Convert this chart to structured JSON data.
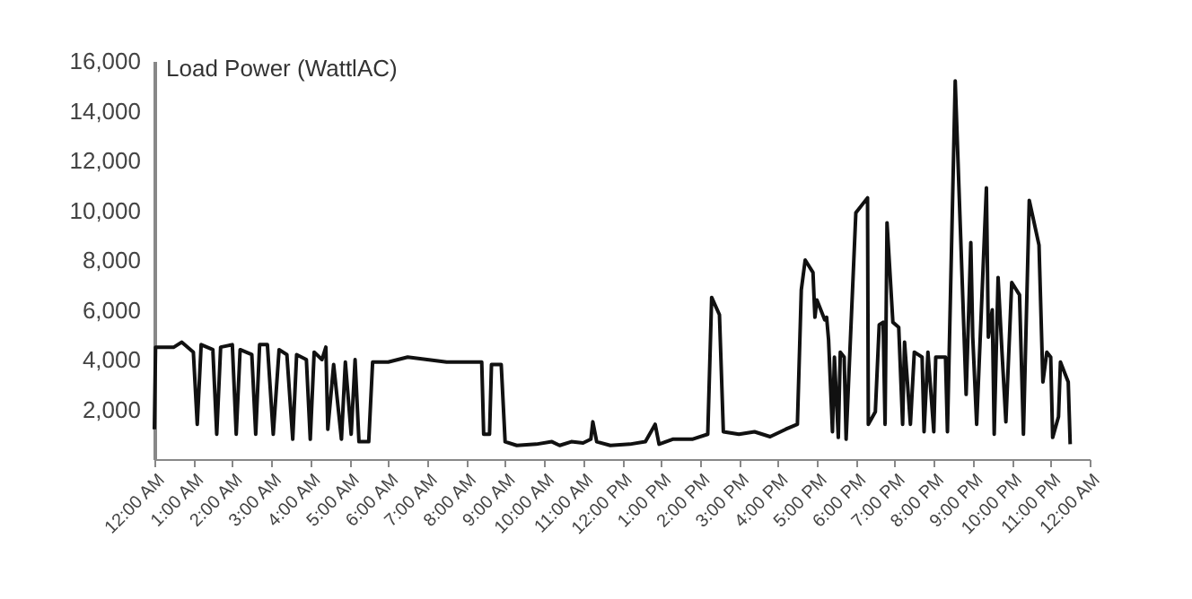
{
  "chart_data": {
    "type": "line",
    "ylabel": "Load Power (WattlAC)",
    "xlim": [
      0,
      24
    ],
    "ylim": [
      0,
      16000
    ],
    "xticks": [
      {
        "value": 0,
        "label": "12:00 AM"
      },
      {
        "value": 1,
        "label": "1:00 AM"
      },
      {
        "value": 2,
        "label": "2:00 AM"
      },
      {
        "value": 3,
        "label": "3:00 AM"
      },
      {
        "value": 4,
        "label": "4:00 AM"
      },
      {
        "value": 5,
        "label": "5:00 AM"
      },
      {
        "value": 6,
        "label": "6:00 AM"
      },
      {
        "value": 7,
        "label": "7:00 AM"
      },
      {
        "value": 8,
        "label": "8:00 AM"
      },
      {
        "value": 9,
        "label": "9:00 AM"
      },
      {
        "value": 10,
        "label": "10:00 AM"
      },
      {
        "value": 11,
        "label": "11:00 AM"
      },
      {
        "value": 12,
        "label": "12:00 PM"
      },
      {
        "value": 13,
        "label": "1:00 PM"
      },
      {
        "value": 14,
        "label": "2:00 PM"
      },
      {
        "value": 15,
        "label": "3:00 PM"
      },
      {
        "value": 16,
        "label": "4:00 PM"
      },
      {
        "value": 17,
        "label": "5:00 PM"
      },
      {
        "value": 18,
        "label": "6:00 PM"
      },
      {
        "value": 19,
        "label": "7:00 PM"
      },
      {
        "value": 20,
        "label": "8:00 PM"
      },
      {
        "value": 21,
        "label": "9:00 PM"
      },
      {
        "value": 22,
        "label": "10:00 PM"
      },
      {
        "value": 23,
        "label": "11:00 PM"
      },
      {
        "value": 24,
        "label": "12:00 AM"
      }
    ],
    "yticks": [
      {
        "value": 2000,
        "label": "2,000"
      },
      {
        "value": 4000,
        "label": "4,000"
      },
      {
        "value": 6000,
        "label": "6,000"
      },
      {
        "value": 8000,
        "label": "8,000"
      },
      {
        "value": 10000,
        "label": "10,000"
      },
      {
        "value": 12000,
        "label": "12,000"
      },
      {
        "value": 14000,
        "label": "14,000"
      },
      {
        "value": 16000,
        "label": "16,000"
      }
    ],
    "grid": false,
    "marker": "none",
    "line_style": "solid",
    "series": [
      {
        "color": "#111111",
        "x": [
          0,
          0.03,
          0.5,
          0.7,
          1.0,
          1.1,
          1.2,
          1.5,
          1.6,
          1.7,
          2.0,
          2.1,
          2.2,
          2.5,
          2.6,
          2.7,
          2.9,
          3.05,
          3.2,
          3.4,
          3.55,
          3.65,
          3.9,
          4.0,
          4.1,
          4.3,
          4.4,
          4.45,
          4.6,
          4.8,
          4.9,
          5.05,
          5.15,
          5.25,
          5.5,
          5.6,
          6.0,
          6.5,
          7.0,
          7.5,
          8.0,
          8.4,
          8.45,
          8.6,
          8.65,
          8.9,
          9.0,
          9.3,
          9.8,
          10.2,
          10.4,
          10.7,
          11.0,
          11.2,
          11.25,
          11.35,
          11.7,
          12.2,
          12.6,
          12.85,
          12.95,
          13.3,
          13.8,
          14.2,
          14.3,
          14.5,
          14.6,
          15.0,
          15.4,
          15.8,
          16.2,
          16.5,
          16.6,
          16.7,
          16.9,
          16.95,
          17.0,
          17.1,
          17.2,
          17.25,
          17.3,
          17.4,
          17.45,
          17.55,
          17.6,
          17.7,
          17.75,
          18.0,
          18.3,
          18.32,
          18.5,
          18.6,
          18.7,
          18.75,
          18.8,
          18.95,
          19.1,
          19.2,
          19.25,
          19.4,
          19.5,
          19.7,
          19.75,
          19.85,
          20.0,
          20.05,
          20.3,
          20.35,
          20.55,
          20.83,
          20.95,
          21.0,
          21.1,
          21.35,
          21.4,
          21.5,
          21.55,
          21.65,
          21.75,
          21.85,
          22.0,
          22.2,
          22.3,
          22.45,
          22.7,
          22.8,
          22.9,
          23.0,
          23.05,
          23.2,
          23.25,
          23.45,
          23.5
        ],
        "values": [
          1200,
          4500,
          4500,
          4700,
          4300,
          1400,
          4600,
          4400,
          1000,
          4500,
          4600,
          1000,
          4400,
          4200,
          1000,
          4600,
          4600,
          1000,
          4400,
          4200,
          800,
          4200,
          4000,
          800,
          4300,
          4000,
          4500,
          1200,
          3800,
          800,
          3900,
          1000,
          4000,
          700,
          700,
          3900,
          3900,
          4100,
          4000,
          3900,
          3900,
          3900,
          1000,
          1000,
          3800,
          3800,
          700,
          550,
          600,
          700,
          550,
          700,
          650,
          800,
          1500,
          700,
          550,
          600,
          700,
          1400,
          600,
          800,
          800,
          1000,
          6500,
          5800,
          1100,
          1000,
          1100,
          900,
          1200,
          1400,
          6800,
          8000,
          7500,
          5700,
          6400,
          6000,
          5600,
          5700,
          4800,
          1100,
          4100,
          870,
          4300,
          4100,
          800,
          9900,
          10500,
          1400,
          1900,
          5400,
          5500,
          1400,
          9500,
          5500,
          5300,
          1400,
          4700,
          1400,
          4300,
          4100,
          1100,
          4300,
          1100,
          4100,
          4100,
          1100,
          15200,
          2600,
          8700,
          4900,
          1400,
          10900,
          4900,
          6000,
          1000,
          7300,
          4300,
          1500,
          7100,
          6600,
          1000,
          10400,
          8600,
          3100,
          4300,
          4100,
          870,
          1700,
          3900,
          3100,
          600
        ]
      }
    ]
  }
}
